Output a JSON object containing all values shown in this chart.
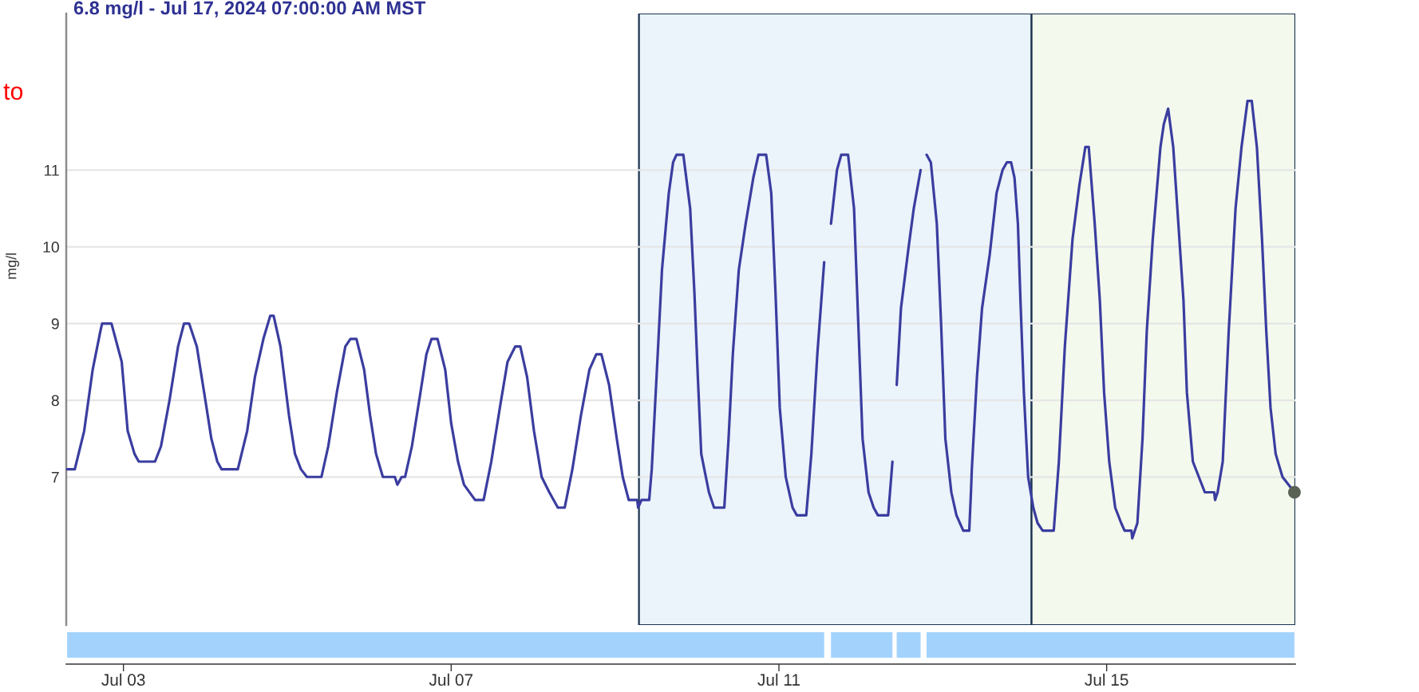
{
  "chart_data": {
    "type": "line",
    "title": "6.8 mg/l - Jul 17, 2024 07:00:00 AM MST",
    "ylabel": "mg/l",
    "annotations": [
      "to"
    ],
    "series": [
      {
        "color": "#3a3d9f",
        "x": [
          "2024-07-02T07:30",
          "2024-07-02T09:45",
          "2024-07-02T12:30",
          "2024-07-02T15:00",
          "2024-07-02T17:15",
          "2024-07-02T17:45",
          "2024-07-02T20:30",
          "2024-07-02T23:30",
          "2024-07-03T01:15",
          "2024-07-03T03:15",
          "2024-07-03T04:30",
          "2024-07-03T09:15",
          "2024-07-03T11:00",
          "2024-07-03T13:30",
          "2024-07-03T16:00",
          "2024-07-03T17:45",
          "2024-07-03T19:15",
          "2024-07-03T21:30",
          "2024-07-04T00:00",
          "2024-07-04T01:45",
          "2024-07-04T03:30",
          "2024-07-04T04:45",
          "2024-07-04T09:30",
          "2024-07-04T12:15",
          "2024-07-04T14:30",
          "2024-07-04T17:00",
          "2024-07-04T19:00",
          "2024-07-04T20:00",
          "2024-07-04T22:00",
          "2024-07-05T00:30",
          "2024-07-05T02:15",
          "2024-07-05T04:00",
          "2024-07-05T05:45",
          "2024-07-05T10:00",
          "2024-07-05T12:00",
          "2024-07-05T14:30",
          "2024-07-05T17:00",
          "2024-07-05T18:30",
          "2024-07-05T20:15",
          "2024-07-05T22:30",
          "2024-07-06T00:15",
          "2024-07-06T02:00",
          "2024-07-06T04:00",
          "2024-07-06T07:30",
          "2024-07-06T08:15",
          "2024-07-06T09:30",
          "2024-07-06T10:30",
          "2024-07-06T12:30",
          "2024-07-06T15:00",
          "2024-07-06T16:45",
          "2024-07-06T18:15",
          "2024-07-06T20:00",
          "2024-07-06T22:15",
          "2024-07-07T00:00",
          "2024-07-07T02:00",
          "2024-07-07T03:45",
          "2024-07-07T07:00",
          "2024-07-07T09:30",
          "2024-07-07T11:45",
          "2024-07-07T14:15",
          "2024-07-07T16:30",
          "2024-07-07T18:45",
          "2024-07-07T20:15",
          "2024-07-07T22:15",
          "2024-07-08T00:15",
          "2024-07-08T02:30",
          "2024-07-08T04:45",
          "2024-07-08T07:15",
          "2024-07-08T09:15",
          "2024-07-08T11:30",
          "2024-07-08T14:00",
          "2024-07-08T16:30",
          "2024-07-08T18:30",
          "2024-07-08T20:00",
          "2024-07-08T22:15",
          "2024-07-09T00:30",
          "2024-07-09T02:15",
          "2024-07-09T04:00",
          "2024-07-09T06:30",
          "2024-07-09T06:45",
          "2024-07-09T07:45",
          "2024-07-09T10:00",
          "2024-07-09T10:45",
          "2024-07-09T12:30",
          "2024-07-09T13:45",
          "2024-07-09T15:45",
          "2024-07-09T17:00",
          "2024-07-09T18:00",
          "2024-07-09T20:00",
          "2024-07-09T22:00",
          "2024-07-09T23:15",
          "2024-07-10T00:15",
          "2024-07-10T01:15",
          "2024-07-10T03:30",
          "2024-07-10T05:00",
          "2024-07-10T08:00",
          "2024-07-10T09:15",
          "2024-07-10T10:30",
          "2024-07-10T12:15",
          "2024-07-10T14:15",
          "2024-07-10T16:30",
          "2024-07-10T18:00",
          "2024-07-10T20:15",
          "2024-07-10T21:45",
          "2024-07-10T23:00",
          "2024-07-11T00:15",
          "2024-07-11T02:00",
          "2024-07-11T04:00",
          "2024-07-11T05:15",
          "2024-07-11T08:00",
          "2024-07-11T09:30",
          "2024-07-11T11:15",
          "2024-07-11T13:15",
          "2024-07-11T14:15",
          "2024-07-11T15:15",
          "2024-07-11T17:00",
          "2024-07-11T18:15",
          "2024-07-11T20:15",
          "2024-07-11T22:00",
          "2024-07-11T23:15",
          "2024-07-12T00:30",
          "2024-07-12T02:15",
          "2024-07-12T03:45",
          "2024-07-12T05:00",
          "2024-07-12T08:00",
          "2024-07-12T09:15",
          "2024-07-12T09:45",
          "2024-07-12T10:30",
          "2024-07-12T11:45",
          "2024-07-12T14:00",
          "2024-07-12T15:30",
          "2024-07-12T17:30",
          "2024-07-12T18:15",
          "2024-07-12T19:15",
          "2024-07-12T20:30",
          "2024-07-12T22:15",
          "2024-07-12T23:30",
          "2024-07-13T00:45",
          "2024-07-13T02:30",
          "2024-07-13T04:00",
          "2024-07-13T06:00",
          "2024-07-13T07:45",
          "2024-07-13T08:15",
          "2024-07-13T08:30",
          "2024-07-13T10:00",
          "2024-07-13T11:30",
          "2024-07-13T13:45",
          "2024-07-13T15:45",
          "2024-07-13T17:30",
          "2024-07-13T18:45",
          "2024-07-13T20:00",
          "2024-07-13T21:00",
          "2024-07-13T22:00",
          "2024-07-13T22:45",
          "2024-07-13T23:45",
          "2024-07-14T01:00",
          "2024-07-14T02:30",
          "2024-07-14T03:45",
          "2024-07-14T05:15",
          "2024-07-14T08:30",
          "2024-07-14T10:00",
          "2024-07-14T11:45",
          "2024-07-14T14:00",
          "2024-07-14T16:00",
          "2024-07-14T17:45",
          "2024-07-14T18:45",
          "2024-07-14T20:30",
          "2024-07-14T22:00",
          "2024-07-14T23:15",
          "2024-07-15T00:45",
          "2024-07-15T02:30",
          "2024-07-15T04:15",
          "2024-07-15T05:15",
          "2024-07-15T07:15",
          "2024-07-15T07:30",
          "2024-07-15T09:00",
          "2024-07-15T10:30",
          "2024-07-15T11:45",
          "2024-07-15T13:30",
          "2024-07-15T15:45",
          "2024-07-15T16:45",
          "2024-07-15T18:00",
          "2024-07-15T19:30",
          "2024-07-15T21:00",
          "2024-07-15T22:30",
          "2024-07-15T23:30",
          "2024-07-16T01:15",
          "2024-07-16T03:00",
          "2024-07-16T04:45",
          "2024-07-16T07:30",
          "2024-07-16T07:45",
          "2024-07-16T08:30",
          "2024-07-16T10:00",
          "2024-07-16T11:45",
          "2024-07-16T13:45",
          "2024-07-16T15:30",
          "2024-07-16T17:15",
          "2024-07-16T18:30",
          "2024-07-16T20:00",
          "2024-07-16T21:30",
          "2024-07-16T22:45",
          "2024-07-17T00:00",
          "2024-07-17T01:30",
          "2024-07-17T03:30",
          "2024-07-17T07:00"
        ],
        "values": [
          7.1,
          7.1,
          7.6,
          8.4,
          8.9,
          9.0,
          9.0,
          8.5,
          7.6,
          7.3,
          7.2,
          7.2,
          7.4,
          8.0,
          8.7,
          9.0,
          9.0,
          8.7,
          8.0,
          7.5,
          7.2,
          7.1,
          7.1,
          7.6,
          8.3,
          8.8,
          9.1,
          9.1,
          8.7,
          7.8,
          7.3,
          7.1,
          7.0,
          7.0,
          7.4,
          8.1,
          8.7,
          8.8,
          8.8,
          8.4,
          7.8,
          7.3,
          7.0,
          7.0,
          6.9,
          7.0,
          7.0,
          7.4,
          8.1,
          8.6,
          8.8,
          8.8,
          8.4,
          7.7,
          7.2,
          6.9,
          6.7,
          6.7,
          7.2,
          7.9,
          8.5,
          8.7,
          8.7,
          8.3,
          7.6,
          7.0,
          6.8,
          6.6,
          6.6,
          7.1,
          7.8,
          8.4,
          8.6,
          8.6,
          8.2,
          7.5,
          7.0,
          6.7,
          6.7,
          6.6,
          6.7,
          6.7,
          7.1,
          8.6,
          9.7,
          10.7,
          11.1,
          11.2,
          11.2,
          10.5,
          9.4,
          8.3,
          7.3,
          6.8,
          6.6,
          6.6,
          7.5,
          8.6,
          9.7,
          10.3,
          10.9,
          11.2,
          11.2,
          10.7,
          9.4,
          7.9,
          7.0,
          6.6,
          6.5,
          6.5,
          7.3,
          8.6,
          9.8,
          null,
          10.3,
          11.0,
          11.2,
          11.2,
          10.5,
          9.0,
          7.5,
          6.8,
          6.6,
          6.5,
          6.5,
          7.2,
          null,
          8.2,
          9.2,
          10.0,
          10.5,
          11.0,
          null,
          11.2,
          11.1,
          10.3,
          9.0,
          7.5,
          6.8,
          6.5,
          6.3,
          6.3,
          6.8,
          7.1,
          8.3,
          9.2,
          9.9,
          10.7,
          11.0,
          11.1,
          11.1,
          10.9,
          10.3,
          9.3,
          8.1,
          7.0,
          6.6,
          6.4,
          6.3,
          6.3,
          7.2,
          8.7,
          10.1,
          10.8,
          11.3,
          11.3,
          10.3,
          9.3,
          8.1,
          7.2,
          6.6,
          6.4,
          6.3,
          6.3,
          6.2,
          6.4,
          7.5,
          8.9,
          10.1,
          11.3,
          11.6,
          11.8,
          11.3,
          10.3,
          9.3,
          8.1,
          7.2,
          7.0,
          6.8,
          6.8,
          6.7,
          6.8,
          7.2,
          8.9,
          10.5,
          11.3,
          11.9,
          11.9,
          11.3,
          10.1,
          8.9,
          7.9,
          7.3,
          7.0,
          6.8
        ]
      },
      {
        "type": "scatter",
        "color": "#596054",
        "x": [
          "2024-07-17T07:00"
        ],
        "values": [
          6.8
        ]
      }
    ],
    "xlim": [
      "2024-07-02T07:15",
      "2024-07-17T07:15"
    ],
    "xticks": [
      {
        "value": "2024-07-03",
        "label": "Jul 03"
      },
      {
        "value": "2024-07-07",
        "label": "Jul 07"
      },
      {
        "value": "2024-07-11",
        "label": "Jul 11"
      },
      {
        "value": "2024-07-15",
        "label": "Jul 15"
      }
    ],
    "ylim": [
      5.07,
      13.04
    ],
    "yticks": [
      7,
      8,
      9,
      10,
      11
    ],
    "grid": "y",
    "bands": [
      {
        "axis": "x",
        "from": "2024-07-09T07:00",
        "to": "2024-07-14T02:00",
        "color": "#ebf3fb"
      },
      {
        "axis": "x",
        "from": "2024-07-14T02:00",
        "to": "2024-07-17T07:15",
        "color": "#f3f9ed"
      }
    ]
  }
}
